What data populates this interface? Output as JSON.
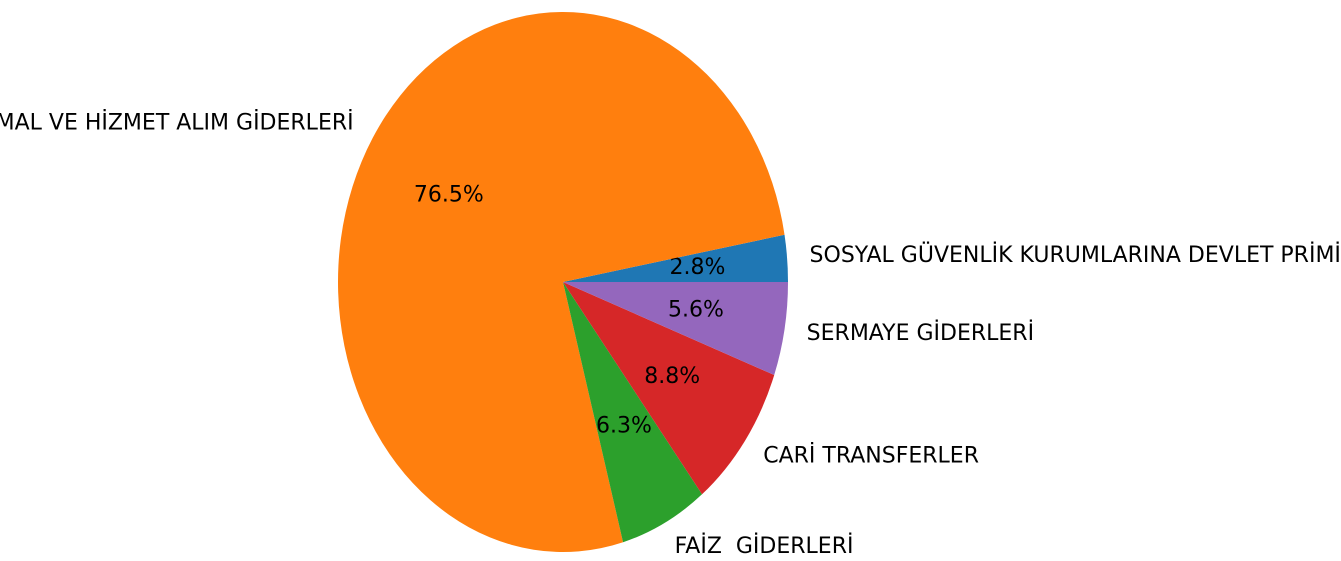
{
  "chart_data": {
    "type": "pie",
    "categories": [
      "SOSYAL GÜVENLİK KURUMLARINA DEVLET PRİMİ",
      "MAL VE HİZMET ALIM GİDERLERİ",
      "FAİZ  GİDERLERİ",
      "CARİ TRANSFERLER",
      "SERMAYE GİDERLERİ"
    ],
    "values": [
      2.8,
      76.5,
      6.3,
      8.8,
      5.6
    ],
    "value_labels": [
      "2.8%",
      "76.5%",
      "6.3%",
      "8.8%",
      "5.6%"
    ],
    "colors": [
      "#1f77b4",
      "#ff7f0e",
      "#2ca02c",
      "#d62728",
      "#9467bd"
    ]
  }
}
